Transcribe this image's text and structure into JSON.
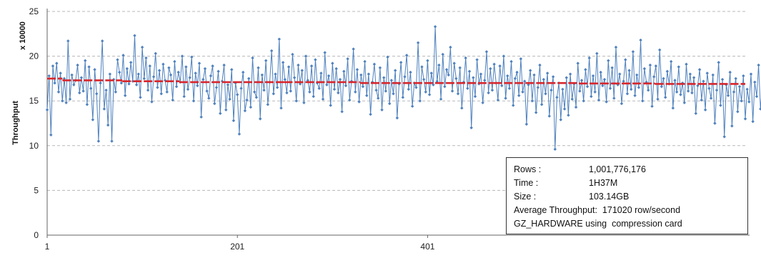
{
  "chart_data": {
    "type": "line",
    "ylabel": "Throughput",
    "y_multiplier_label": "x 10000",
    "ylim": [
      0,
      25
    ],
    "y_ticks": [
      0,
      5,
      10,
      15,
      20,
      25
    ],
    "y_tick_labels": [
      "0",
      "5",
      "10",
      "15",
      "20",
      "25"
    ],
    "xlim": [
      1,
      735
    ],
    "x_ticks": [
      1,
      201,
      401
    ],
    "x_tick_labels": [
      "1",
      "201",
      "401"
    ],
    "grid": "horizontal dashed",
    "series": [
      {
        "role": "throughput",
        "color": "#4f81bd",
        "marker": "diamond",
        "x_start": 1,
        "x_step": 2,
        "values": [
          14.0,
          17.8,
          11.2,
          18.9,
          17.0,
          19.2,
          16.0,
          18.1,
          15.0,
          17.5,
          14.8,
          21.7,
          15.2,
          17.9,
          16.8,
          17.3,
          19.0,
          15.9,
          17.6,
          16.1,
          19.5,
          14.6,
          18.8,
          16.4,
          12.9,
          18.5,
          15.8,
          10.5,
          17.0,
          21.7,
          14.1,
          16.2,
          12.3,
          18.0,
          10.5,
          17.4,
          16.0,
          19.6,
          18.2,
          17.0,
          20.1,
          15.6,
          18.6,
          16.9,
          19.3,
          17.2,
          22.3,
          16.8,
          18.0,
          15.4,
          21.0,
          17.5,
          19.8,
          16.2,
          18.9,
          14.9,
          17.7,
          20.3,
          16.5,
          18.4,
          15.8,
          19.1,
          17.3,
          16.0,
          18.7,
          17.9,
          15.1,
          19.4,
          16.6,
          18.2,
          17.1,
          20.0,
          15.5,
          18.8,
          16.3,
          17.6,
          19.9,
          15.0,
          18.1,
          16.7,
          19.2,
          13.2,
          17.4,
          18.6,
          16.1,
          15.3,
          17.8,
          18.9,
          14.7,
          16.5,
          18.3,
          13.6,
          17.2,
          19.0,
          14.0,
          16.8,
          15.2,
          18.5,
          12.8,
          17.0,
          15.7,
          11.3,
          16.4,
          18.2,
          13.9,
          15.1,
          17.5,
          14.3,
          19.8,
          16.0,
          15.4,
          18.7,
          13.0,
          17.9,
          16.2,
          19.5,
          14.6,
          17.1,
          20.6,
          15.8,
          18.0,
          16.5,
          21.9,
          14.2,
          19.3,
          17.4,
          15.9,
          18.8,
          16.1,
          20.2,
          17.6,
          15.0,
          19.0,
          16.9,
          18.4,
          14.8,
          20.0,
          17.3,
          16.0,
          18.9,
          15.5,
          19.6,
          17.0,
          16.4,
          18.1,
          15.2,
          20.4,
          16.8,
          17.8,
          14.5,
          19.2,
          16.3,
          18.6,
          15.9,
          17.4,
          13.8,
          18.3,
          16.7,
          19.7,
          15.1,
          17.2,
          20.8,
          16.0,
          18.5,
          14.9,
          17.9,
          16.6,
          19.4,
          15.6,
          18.0,
          13.5,
          17.1,
          19.1,
          16.2,
          15.3,
          18.7,
          14.0,
          17.6,
          16.1,
          19.9,
          14.7,
          17.3,
          15.8,
          18.4,
          13.1,
          16.9,
          19.3,
          15.4,
          17.7,
          20.1,
          16.3,
          18.2,
          14.4,
          17.0,
          16.5,
          21.5,
          15.0,
          18.8,
          17.4,
          16.0,
          19.5,
          15.7,
          18.1,
          16.8,
          23.3,
          17.2,
          19.0,
          15.2,
          20.2,
          16.6,
          18.5,
          17.9,
          21.0,
          16.1,
          19.2,
          17.5,
          15.8,
          18.7,
          14.2,
          17.1,
          19.8,
          16.4,
          18.3,
          12.0,
          17.6,
          15.5,
          19.6,
          16.9,
          18.0,
          14.8,
          17.3,
          20.5,
          15.9,
          18.6,
          16.2,
          19.1,
          17.0,
          15.1,
          18.9,
          16.7,
          20.0,
          15.3,
          17.8,
          16.4,
          19.4,
          14.5,
          17.5,
          18.2,
          15.6,
          19.7,
          16.0,
          17.2,
          12.4,
          16.8,
          18.4,
          15.0,
          17.9,
          13.7,
          16.5,
          19.0,
          14.6,
          17.4,
          15.8,
          18.1,
          13.3,
          16.2,
          17.7,
          9.6,
          15.4,
          17.0,
          12.9,
          16.3,
          14.1,
          17.6,
          13.4,
          18.0,
          15.2,
          16.9,
          14.3,
          19.2,
          16.1,
          17.3,
          15.0,
          18.5,
          16.6,
          19.8,
          15.5,
          17.8,
          16.0,
          20.3,
          15.1,
          18.2,
          16.7,
          17.4,
          14.9,
          19.5,
          16.4,
          18.7,
          15.3,
          21.0,
          16.8,
          18.0,
          14.7,
          17.2,
          19.6,
          15.8,
          18.4,
          16.3,
          20.5,
          15.6,
          17.9,
          16.5,
          21.8,
          15.0,
          18.6,
          17.1,
          16.2,
          19.0,
          14.4,
          17.7,
          18.9,
          15.2,
          20.7,
          16.6,
          17.5,
          15.4,
          18.3,
          16.9,
          19.4,
          14.2,
          17.3,
          16.0,
          18.8,
          15.7,
          17.0,
          14.8,
          19.1,
          16.1,
          18.0,
          15.9,
          17.6,
          13.6,
          16.7,
          18.5,
          15.1,
          17.2,
          14.0,
          18.1,
          16.4,
          15.3,
          17.9,
          12.5,
          16.2,
          19.3,
          14.5,
          17.4,
          11.0,
          16.8,
          15.6,
          18.2,
          12.2,
          16.0,
          17.5,
          13.8,
          16.6,
          15.0,
          17.8,
          13.0,
          16.3,
          14.9,
          18.0,
          12.7,
          17.1,
          15.5,
          19.0,
          14.1,
          16.9,
          18.4,
          11.8
        ]
      },
      {
        "role": "average segments",
        "color": "#d8262b",
        "style": "dashed",
        "segments": [
          {
            "x_start": 1,
            "x_end": 17,
            "value": 17.5
          },
          {
            "x_start": 17,
            "x_end": 80,
            "value": 17.3
          },
          {
            "x_start": 80,
            "x_end": 140,
            "value": 17.2
          },
          {
            "x_start": 140,
            "x_end": 250,
            "value": 17.1
          },
          {
            "x_start": 250,
            "x_end": 330,
            "value": 17.1
          },
          {
            "x_start": 330,
            "x_end": 470,
            "value": 17.0
          },
          {
            "x_start": 470,
            "x_end": 560,
            "value": 17.0
          },
          {
            "x_start": 560,
            "x_end": 640,
            "value": 16.95
          },
          {
            "x_start": 640,
            "x_end": 735,
            "value": 16.9
          }
        ]
      }
    ]
  },
  "info_box": {
    "rows": [
      {
        "key": "Rows :",
        "value": "1,001,776,176"
      },
      {
        "key": "Time :",
        "value": "1H37M"
      },
      {
        "key": "Size :",
        "value": "103.14GB"
      }
    ],
    "average_line": "Average Throughput:  171020 row/second",
    "mode_line": "GZ_HARDWARE using  compression card"
  }
}
